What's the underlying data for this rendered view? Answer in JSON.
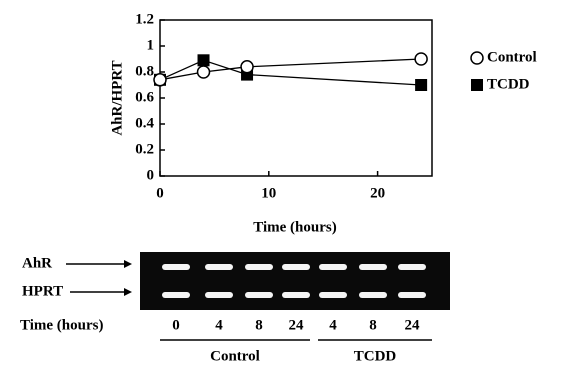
{
  "chart_data": {
    "type": "line",
    "y_label": "AhR/HPRT",
    "x_label": "Time (hours)",
    "x": [
      0,
      4,
      8,
      24
    ],
    "series": [
      {
        "name": "Control",
        "color": "#000000",
        "marker": "open-circle",
        "values": [
          0.74,
          0.8,
          0.84,
          0.9
        ]
      },
      {
        "name": "TCDD",
        "color": "#000000",
        "marker": "filled-square",
        "values": [
          0.74,
          0.89,
          0.78,
          0.7
        ]
      }
    ],
    "xlim": [
      0,
      25
    ],
    "xticks": [
      0,
      10,
      20
    ],
    "ylim": [
      0,
      1.2
    ],
    "yticks": [
      0,
      0.2,
      0.4,
      0.6,
      0.8,
      1,
      1.2
    ],
    "grid": false,
    "legend": "right"
  },
  "gel": {
    "row_labels": [
      "AhR",
      "HPRT"
    ],
    "lane_label": "Time (hours)",
    "lanes": [
      "0",
      "4",
      "8",
      "24",
      "4",
      "8",
      "24"
    ],
    "groups": [
      "Control",
      "TCDD"
    ]
  }
}
